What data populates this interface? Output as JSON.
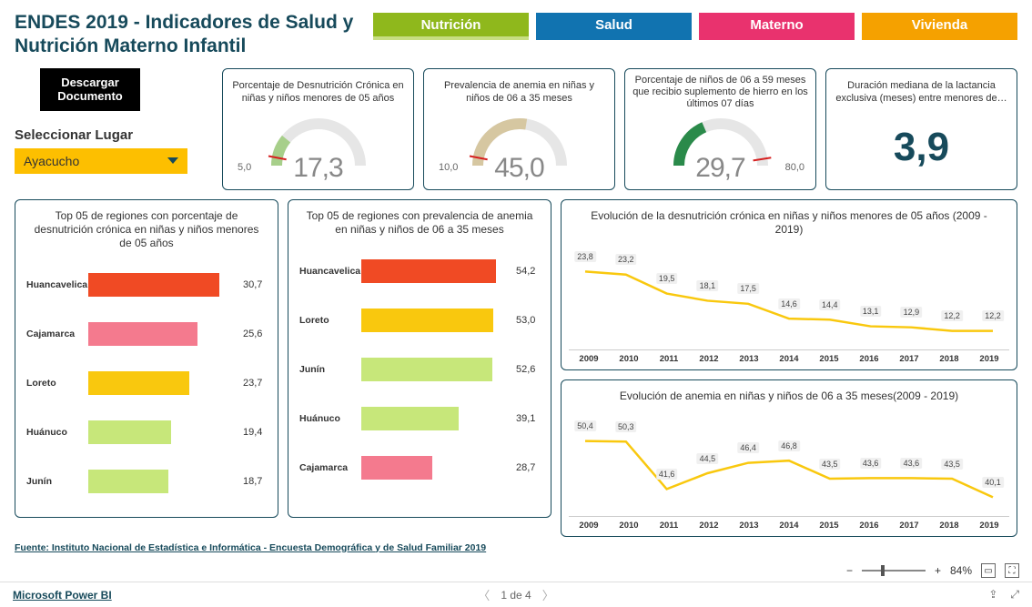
{
  "title": "ENDES 2019 - Indicadores de Salud y Nutrición Materno Infantil",
  "tabs": [
    {
      "label": "Nutrición",
      "bg": "#8fb81c",
      "underline": "#c7de82"
    },
    {
      "label": "Salud",
      "bg": "#1173b0",
      "underline": "#1173b0"
    },
    {
      "label": "Materno",
      "bg": "#e9326e",
      "underline": "#e9326e"
    },
    {
      "label": "Vivienda",
      "bg": "#f5a100",
      "underline": "#f5a100"
    }
  ],
  "download_label": "Descargar Documento",
  "select_label": "Seleccionar Lugar",
  "select_value": "Ayacucho",
  "kpis": [
    {
      "title": "Porcentaje de Desnutrición Crónica en niñas y niños menores de 05 años",
      "value": "17,3",
      "min": "5,0",
      "max": "",
      "arc_color": "#a7cf8a",
      "arc_pct": 0.22,
      "track_color": "#e6e6e6",
      "target": 0.06
    },
    {
      "title": "Prevalencia de anemia en niñas y niños de 06 a 35 meses",
      "value": "45,0",
      "min": "10,0",
      "max": "",
      "arc_color": "#d6c7a1",
      "arc_pct": 0.55,
      "track_color": "#e6e6e6",
      "target": 0.06
    },
    {
      "title": "Porcentaje de niños de 06 a 59 meses que recibio suplemento de hierro en los últimos 07 días",
      "value": "29,7",
      "min": "",
      "max": "80,0",
      "arc_color": "#2a8a4a",
      "arc_pct": 0.37,
      "track_color": "#e6e6e6",
      "target": 0.95
    }
  ],
  "bignum": {
    "title": "Duración mediana de la lactancia exclusiva (meses) entre menores de…",
    "value": "3,9"
  },
  "bar1": {
    "title": "Top 05 de regiones con porcentaje de desnutrición crónica en niñas y niños menores de 05 años",
    "max": 35,
    "rows": [
      {
        "label": "Huancavelica",
        "value": 30.7,
        "text": "30,7",
        "color": "#f04a24"
      },
      {
        "label": "Cajamarca",
        "value": 25.6,
        "text": "25,6",
        "color": "#f47a8e"
      },
      {
        "label": "Loreto",
        "value": 23.7,
        "text": "23,7",
        "color": "#f9c80e"
      },
      {
        "label": "Huánuco",
        "value": 19.4,
        "text": "19,4",
        "color": "#c7e77a"
      },
      {
        "label": "Junín",
        "value": 18.7,
        "text": "18,7",
        "color": "#c7e77a"
      }
    ]
  },
  "bar2": {
    "title": "Top 05 de regiones con prevalencia de anemia en niñas y niños de 06 a 35 meses",
    "max": 60,
    "rows": [
      {
        "label": "Huancavelica",
        "value": 54.2,
        "text": "54,2",
        "color": "#f04a24"
      },
      {
        "label": "Loreto",
        "value": 53.0,
        "text": "53,0",
        "color": "#f9c80e"
      },
      {
        "label": "Junín",
        "value": 52.6,
        "text": "52,6",
        "color": "#c7e77a"
      },
      {
        "label": "Huánuco",
        "value": 39.1,
        "text": "39,1",
        "color": "#c7e77a"
      },
      {
        "label": "Cajamarca",
        "value": 28.7,
        "text": "28,7",
        "color": "#f47a8e"
      }
    ]
  },
  "line1": {
    "title": "Evolución de la desnutrición crónica en niñas y niños menores de 05 años (2009 - 2019)",
    "years": [
      "2009",
      "2010",
      "2011",
      "2012",
      "2013",
      "2014",
      "2015",
      "2016",
      "2017",
      "2018",
      "2019"
    ],
    "values": [
      23.8,
      23.2,
      19.5,
      18.1,
      17.5,
      14.6,
      14.4,
      13.1,
      12.9,
      12.2,
      12.2
    ],
    "labels": [
      "23,8",
      "23,2",
      "19,5",
      "18,1",
      "17,5",
      "14,6",
      "14,4",
      "13,1",
      "12,9",
      "12,2",
      "12,2"
    ],
    "ymin": 10,
    "ymax": 26,
    "color": "#f9c80e"
  },
  "line2": {
    "title": "Evolución de anemia en niñas y niños de 06 a 35 meses(2009 - 2019)",
    "years": [
      "2009",
      "2010",
      "2011",
      "2012",
      "2013",
      "2014",
      "2015",
      "2016",
      "2017",
      "2018",
      "2019"
    ],
    "values": [
      50.4,
      50.3,
      41.6,
      44.5,
      46.4,
      46.8,
      43.5,
      43.6,
      43.6,
      43.5,
      40.1
    ],
    "labels": [
      "50,4",
      "50,3",
      "41,6",
      "44,5",
      "46,4",
      "46,8",
      "43,5",
      "43,6",
      "43,6",
      "43,5",
      "40,1"
    ],
    "ymin": 38,
    "ymax": 53,
    "color": "#f9c80e"
  },
  "source": "Fuente: Instituto Nacional de Estadística e Informática - Encuesta Demográfica y de Salud Familiar 2019",
  "zoom": "84%",
  "pager": "1 de 4",
  "brand": "Microsoft Power BI"
}
